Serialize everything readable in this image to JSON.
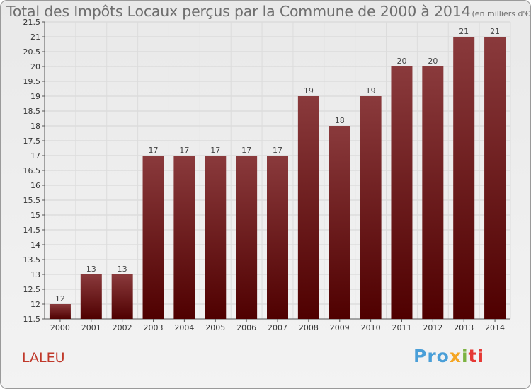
{
  "title": "Total des Impôts Locaux perçus par la Commune de 2000 à 2014",
  "subtitle": "(en milliers d'€)",
  "commune": "LALEU",
  "logo": {
    "p1": "Pro",
    "p2": "x",
    "p3": "i",
    "p4": "ti"
  },
  "colors": {
    "bar_top": "#8a3a3c",
    "bar_bottom": "#4f0000",
    "commune_text": "#c0392b"
  },
  "chart_data": {
    "type": "bar",
    "title": "Total des Impôts Locaux perçus par la Commune de 2000 à 2014",
    "subtitle": "(en milliers d'€)",
    "categories": [
      "2000",
      "2001",
      "2002",
      "2003",
      "2004",
      "2005",
      "2006",
      "2007",
      "2008",
      "2009",
      "2010",
      "2011",
      "2012",
      "2013",
      "2014"
    ],
    "values": [
      12,
      13,
      13,
      17,
      17,
      17,
      17,
      17,
      19,
      18,
      19,
      20,
      20,
      21,
      21
    ],
    "ylim": [
      11.5,
      21.5
    ],
    "yticks": [
      11.5,
      12,
      12.5,
      13,
      13.5,
      14,
      14.5,
      15,
      15.5,
      16,
      16.5,
      17,
      17.5,
      18,
      18.5,
      19,
      19.5,
      20,
      20.5,
      21,
      21.5
    ],
    "xlabel": "",
    "ylabel": "",
    "grid": true,
    "legend": "none"
  }
}
